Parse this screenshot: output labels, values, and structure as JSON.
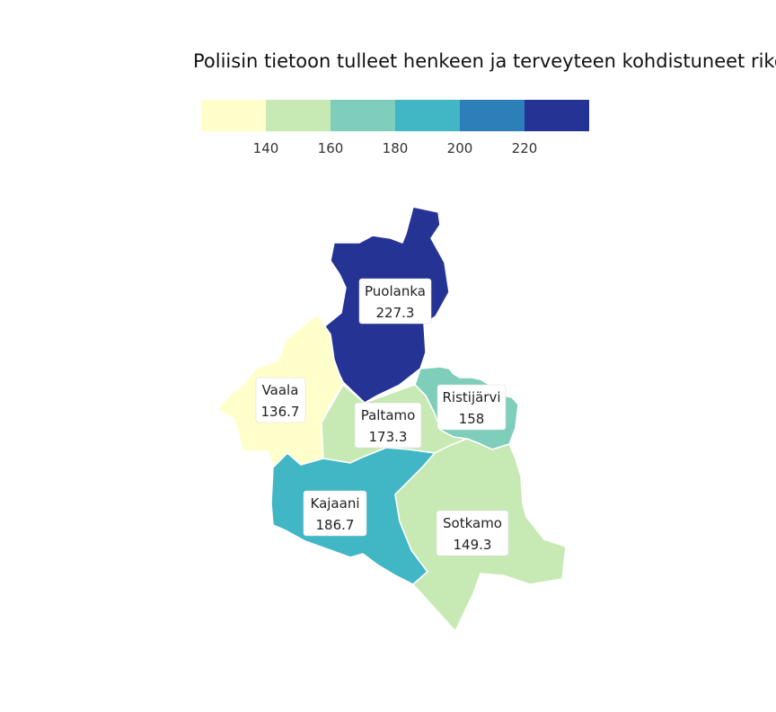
{
  "title": "Poliisin tietoon tulleet henkeen ja terveyteen kohdistuneet rikos",
  "legend": {
    "colors": [
      "#ffffcc",
      "#c7e9b4",
      "#7fcdbb",
      "#41b6c4",
      "#2c7fb8",
      "#253494"
    ],
    "ticks": [
      "140",
      "160",
      "180",
      "200",
      "220"
    ]
  },
  "chart_data": {
    "type": "choropleth",
    "title": "Poliisin tietoon tulleet henkeen ja terveyteen kohdistuneet rikos",
    "breaks": [
      140,
      160,
      180,
      200,
      220
    ],
    "regions": [
      {
        "name": "Puolanka",
        "value": 227.3,
        "value_label": "227.3"
      },
      {
        "name": "Vaala",
        "value": 136.7,
        "value_label": "136.7"
      },
      {
        "name": "Ristijärvi",
        "value": 158,
        "value_label": "158"
      },
      {
        "name": "Paltamo",
        "value": 173.3,
        "value_label": "173.3"
      },
      {
        "name": "Kajaani",
        "value": 186.7,
        "value_label": "186.7"
      },
      {
        "name": "Sotkamo",
        "value": 149.3,
        "value_label": "149.3"
      }
    ]
  }
}
